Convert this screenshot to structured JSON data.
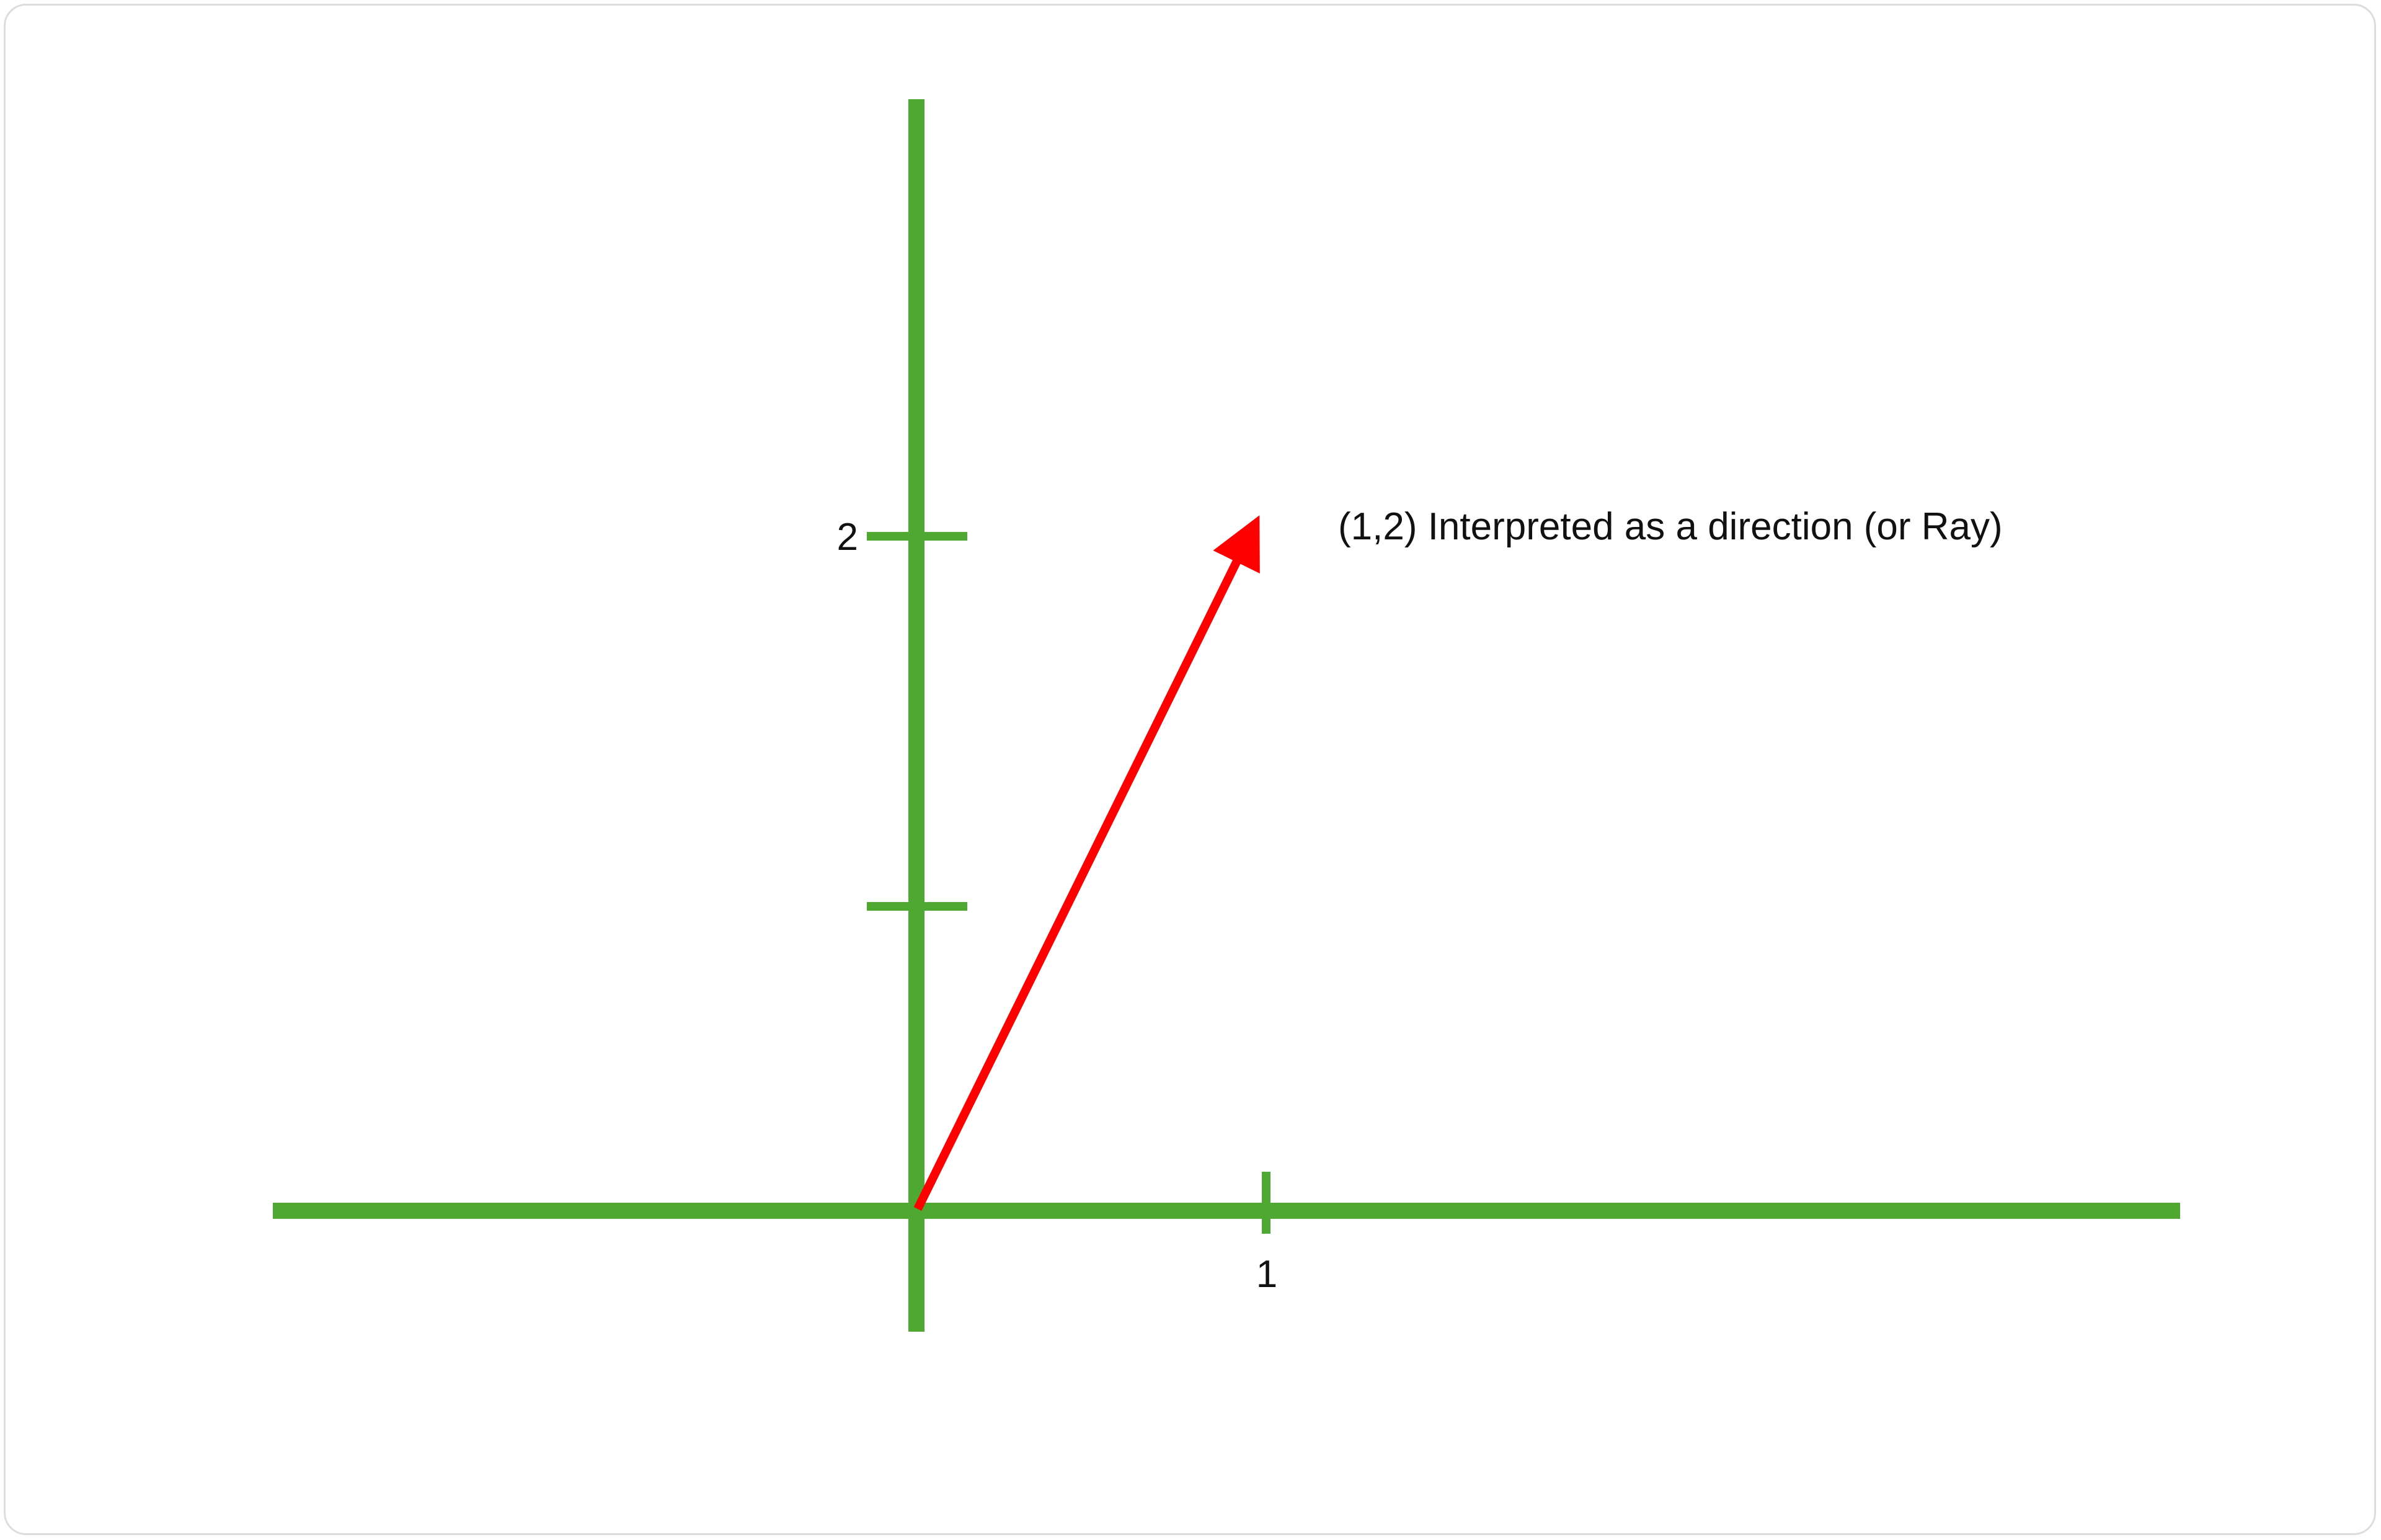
{
  "axes": {
    "color": "#4ea832",
    "x_tick_labels": [
      "1"
    ],
    "y_tick_labels": [
      "2"
    ]
  },
  "vector": {
    "color": "#ff0000",
    "from": [
      0,
      0
    ],
    "to": [
      1,
      2
    ],
    "label": "(1,2) Interpreted as a direction (or Ray)"
  }
}
